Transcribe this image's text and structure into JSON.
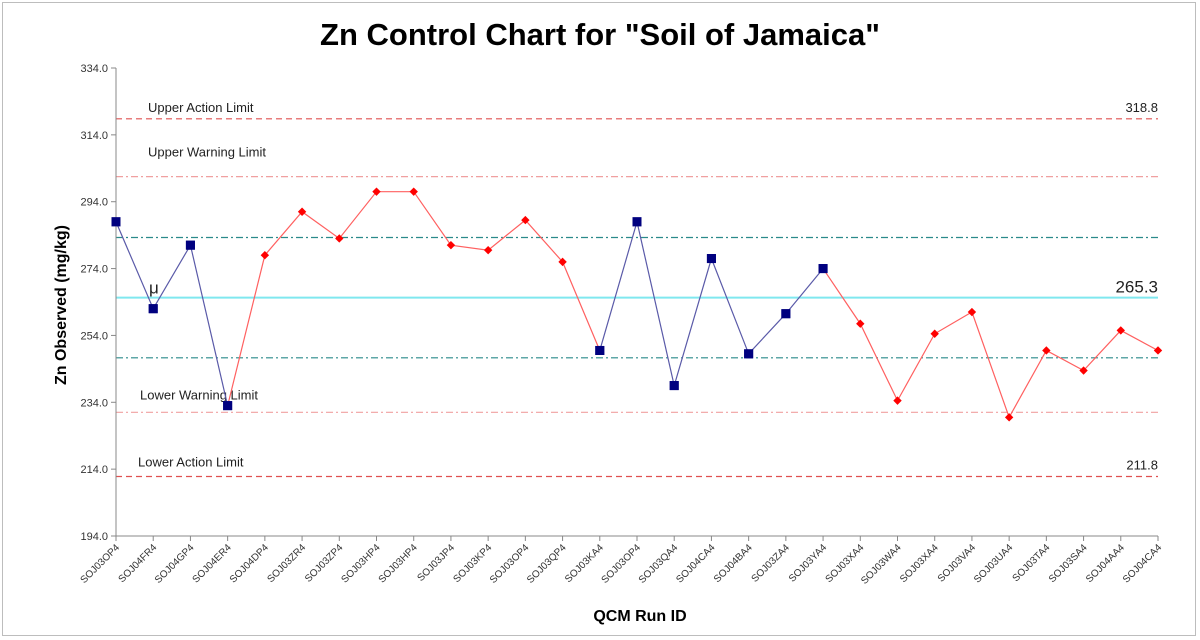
{
  "chart_data": {
    "type": "line",
    "title": "Zn Control Chart for \"Soil of Jamaica\"",
    "xlabel": "QCM Run ID",
    "ylabel": "Zn Observed (mg/kg)",
    "ylim": [
      194,
      334
    ],
    "yticks": [
      194,
      214,
      234,
      254,
      274,
      294,
      314,
      334
    ],
    "ytick_labels": [
      "194.0",
      "214.0",
      "234.0",
      "254.0",
      "274.0",
      "294.0",
      "314.0",
      "334.0"
    ],
    "grid": false,
    "categories": [
      "SOJ03OP4",
      "SOJ04FR4",
      "SOJ04GP4",
      "SOJ04ER4",
      "SOJ04DP4",
      "SOJ03ZR4",
      "SOJ03ZP4",
      "SOJ03HP4",
      "SOJ03HP4",
      "SOJ03JP4",
      "SOJ03KP4",
      "SOJ03OP4",
      "SOJ03QP4",
      "SOJ03KA4",
      "SOJ03OP4",
      "SOJ03QA4",
      "SOJ04CA4",
      "SOJ04BA4",
      "SOJ03ZA4",
      "SOJ03YA4",
      "SOJ03XA4",
      "SOJ03WA4",
      "SOJ03XA4",
      "SOJ03VA4",
      "SOJ03UA4",
      "SOJ03TA4",
      "SOJ03SA4",
      "SOJ04AA4",
      "SOJ04CA4"
    ],
    "series": [
      {
        "marker": "square",
        "color": "#00007f",
        "line_color": "#5a5aa8",
        "values": [
          288,
          262,
          281,
          233,
          null,
          null,
          null,
          null,
          null,
          null,
          null,
          null,
          null,
          249.5,
          288,
          239,
          277,
          248.5,
          260.5,
          274,
          null,
          null,
          null,
          null,
          null,
          null,
          null,
          null,
          null
        ]
      },
      {
        "marker": "diamond",
        "color": "#ff0000",
        "line_color": "#ff6060",
        "values": [
          null,
          null,
          null,
          233,
          278,
          291,
          283,
          297,
          297,
          281,
          279.5,
          288.5,
          276,
          249.5,
          null,
          null,
          null,
          null,
          null,
          274,
          257.5,
          234.5,
          254.5,
          261,
          229.5,
          249.5,
          243.5,
          255.5,
          249.5
        ]
      }
    ],
    "reference_lines": [
      {
        "label": "Upper Action Limit",
        "value": 318.8,
        "value_label": "318.8",
        "color": "#e05050",
        "style": "dashed"
      },
      {
        "label": "Upper Warning Limit",
        "value": 301.5,
        "value_label": "",
        "color": "#f0a0a0",
        "style": "dashdot"
      },
      {
        "label": "",
        "value": 283.3,
        "value_label": "",
        "color": "#2a8a8a",
        "style": "dashdot"
      },
      {
        "label": "μ",
        "value": 265.3,
        "value_label": "265.3",
        "color": "#7fe8ef",
        "style": "solid"
      },
      {
        "label": "",
        "value": 247.3,
        "value_label": "",
        "color": "#2a8a8a",
        "style": "dashdot"
      },
      {
        "label": "Lower Warning Limit",
        "value": 231.0,
        "value_label": "",
        "color": "#f0a0a0",
        "style": "dashdot"
      },
      {
        "label": "Lower Action Limit",
        "value": 211.8,
        "value_label": "211.8",
        "color": "#e05050",
        "style": "dashed"
      }
    ]
  }
}
